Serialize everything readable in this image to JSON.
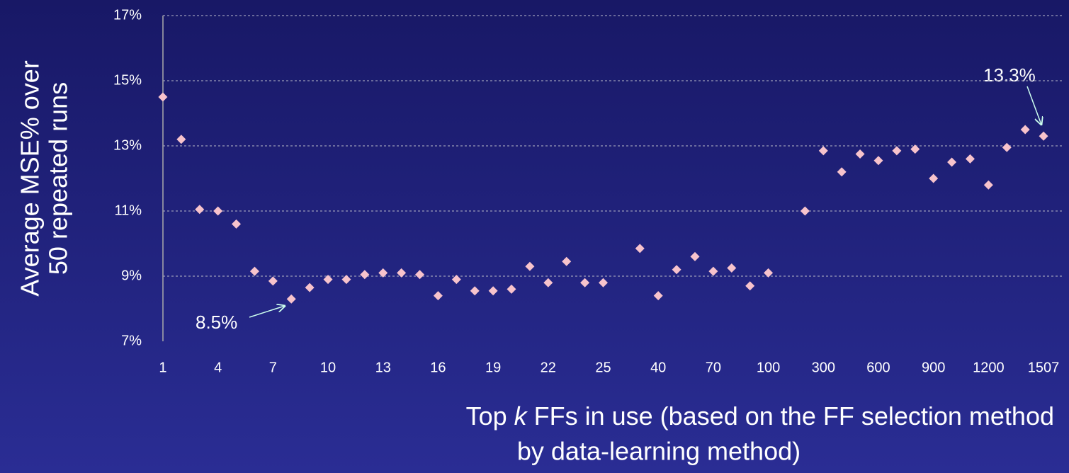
{
  "chart_data": {
    "type": "scatter",
    "ylabel": [
      "Average MSE% over",
      "50 repeated runs"
    ],
    "xlabel": [
      "Top ",
      "k",
      " FFs in use (based on the FF selection method",
      "by data-learning method)"
    ],
    "categories": [
      "1",
      null,
      null,
      "4",
      null,
      null,
      "7",
      null,
      null,
      "10",
      null,
      null,
      "13",
      null,
      null,
      "16",
      null,
      null,
      "19",
      null,
      null,
      "22",
      null,
      null,
      "25",
      null,
      null,
      "40",
      null,
      null,
      "70",
      null,
      null,
      "100",
      null,
      null,
      "300",
      null,
      null,
      "600",
      null,
      null,
      "900",
      null,
      null,
      "1200",
      null,
      null,
      "1507"
    ],
    "values": [
      14.5,
      13.2,
      11.05,
      11.0,
      10.6,
      9.15,
      8.85,
      8.3,
      8.65,
      8.9,
      8.9,
      9.05,
      9.1,
      9.1,
      9.05,
      8.4,
      8.9,
      8.55,
      8.55,
      8.6,
      9.3,
      8.8,
      9.45,
      8.8,
      8.8,
      null,
      9.85,
      8.4,
      9.2,
      9.6,
      9.15,
      9.25,
      8.7,
      9.1,
      null,
      11.0,
      12.85,
      12.2,
      12.75,
      12.55,
      12.85,
      12.9,
      12.0,
      12.5,
      12.6,
      11.8,
      12.95,
      13.5,
      13.3
    ],
    "color": "#f7c3cc",
    "ylim": [
      7,
      17
    ],
    "yticks": [
      {
        "value": 7,
        "label": "7%"
      },
      {
        "value": 9,
        "label": "9%"
      },
      {
        "value": 11,
        "label": "11%"
      },
      {
        "value": 13,
        "label": "13%"
      },
      {
        "value": 15,
        "label": "15%"
      },
      {
        "value": 17,
        "label": "17%"
      }
    ],
    "grid": true,
    "annotations": [
      "8.5%",
      "13.3%"
    ]
  }
}
